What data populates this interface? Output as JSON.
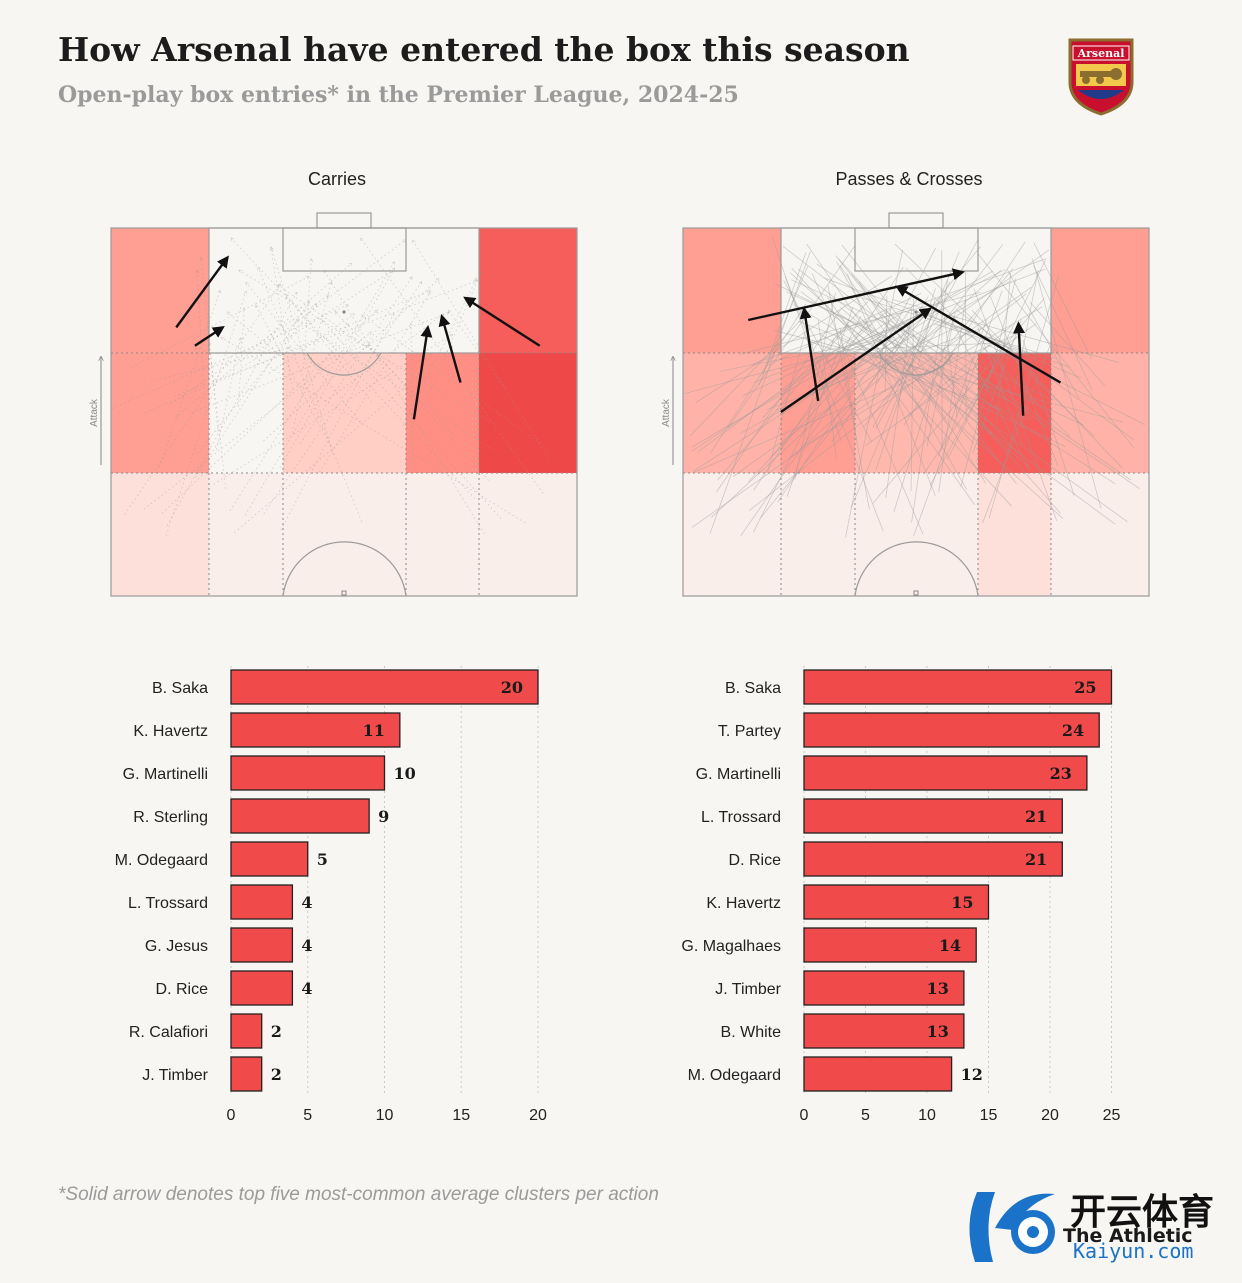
{
  "header": {
    "title": "How Arsenal have entered the box this season",
    "subtitle": "Open-play box entries* in the Premier League, 2024-25"
  },
  "crest": {
    "label": "Arsenal",
    "icon": "arsenal-crest-icon"
  },
  "footnote": "*Solid arrow denotes top five most-common average clusters per action",
  "watermark": {
    "brand_en": "The Athletic",
    "brand_cn": "开云体育",
    "url": "Kaiyun.com"
  },
  "colors": {
    "bar_fill": "#f04a4a",
    "zone_scale": [
      "#faeeea",
      "#fde0da",
      "#ffc8be",
      "#ff9e93",
      "#f96d66",
      "#ef4848"
    ],
    "arrow": "#111111",
    "faint_path": "#9a9a9a"
  },
  "chart_data": [
    {
      "type": "heatmap",
      "title": "Carries",
      "axis_label": "Attack",
      "zones": [
        [
          "#ff9e93",
          "#f8f6f2",
          "#f8f6f2",
          "#f8f6f2",
          "#f55e5a"
        ],
        [
          "#ff9e93",
          "#f8f6f2",
          "#ffcfc6",
          "#ff8f85",
          "#ef4848"
        ],
        [
          "#fde0da",
          "#faeeea",
          "#faeeea",
          "#faeeea",
          "#faeeea"
        ]
      ],
      "cluster_arrows": [
        [
          [
            0.14,
            0.27
          ],
          [
            0.25,
            0.08
          ]
        ],
        [
          [
            0.18,
            0.32
          ],
          [
            0.24,
            0.27
          ]
        ],
        [
          [
            0.65,
            0.52
          ],
          [
            0.68,
            0.27
          ]
        ],
        [
          [
            0.75,
            0.42
          ],
          [
            0.71,
            0.24
          ]
        ],
        [
          [
            0.92,
            0.32
          ],
          [
            0.76,
            0.19
          ]
        ]
      ]
    },
    {
      "type": "heatmap",
      "title": "Passes & Crosses",
      "axis_label": "Attack",
      "zones": [
        [
          "#ff9e93",
          "#f8f6f2",
          "#f8f6f2",
          "#f8f6f2",
          "#ff9e93"
        ],
        [
          "#ffb3a8",
          "#ff9e93",
          "#ffb8ae",
          "#f55e5a",
          "#ffb3a8"
        ],
        [
          "#faeeea",
          "#faeeea",
          "#faeeea",
          "#fde0da",
          "#faeeea"
        ]
      ],
      "cluster_arrows": [
        [
          [
            0.14,
            0.25
          ],
          [
            0.6,
            0.12
          ]
        ],
        [
          [
            0.29,
            0.47
          ],
          [
            0.26,
            0.22
          ]
        ],
        [
          [
            0.21,
            0.5
          ],
          [
            0.53,
            0.22
          ]
        ],
        [
          [
            0.81,
            0.42
          ],
          [
            0.46,
            0.16
          ]
        ],
        [
          [
            0.73,
            0.51
          ],
          [
            0.72,
            0.26
          ]
        ]
      ]
    },
    {
      "type": "bar",
      "title": "Carries",
      "categories": [
        "B. Saka",
        "K. Havertz",
        "G. Martinelli",
        "R. Sterling",
        "M. Odegaard",
        "L. Trossard",
        "G. Jesus",
        "D. Rice",
        "R. Calafiori",
        "J. Timber"
      ],
      "values": [
        20,
        11,
        10,
        9,
        5,
        4,
        4,
        4,
        2,
        2
      ],
      "xlim": [
        0,
        20
      ],
      "ticks": [
        0,
        5,
        10,
        15,
        20
      ]
    },
    {
      "type": "bar",
      "title": "Passes & Crosses",
      "categories": [
        "B. Saka",
        "T. Partey",
        "G. Martinelli",
        "L. Trossard",
        "D. Rice",
        "K. Havertz",
        "G. Magalhaes",
        "J. Timber",
        "B. White",
        "M. Odegaard"
      ],
      "values": [
        25,
        24,
        23,
        21,
        21,
        15,
        14,
        13,
        13,
        12
      ],
      "xlim": [
        0,
        25
      ],
      "ticks": [
        0,
        5,
        10,
        15,
        20,
        25
      ]
    }
  ]
}
